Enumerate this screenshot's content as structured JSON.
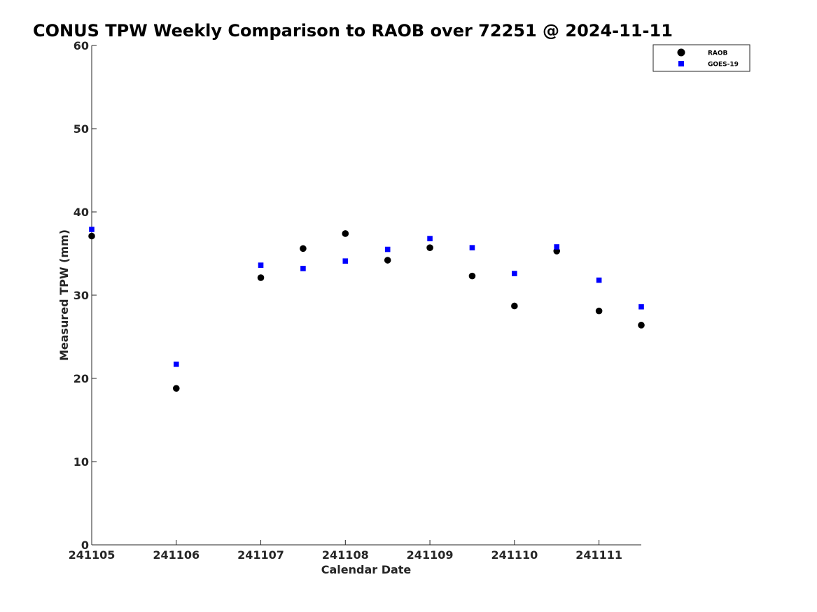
{
  "chart_data": {
    "type": "scatter",
    "title": "CONUS TPW Weekly Comparison to RAOB over 72251 @ 2024-11-11",
    "xlabel": "Calendar Date",
    "ylabel": "Measured TPW (mm)",
    "x_tick_labels": [
      "241105",
      "241106",
      "241107",
      "241108",
      "241109",
      "241110",
      "241111"
    ],
    "y_ticks": [
      0,
      10,
      20,
      30,
      40,
      50,
      60
    ],
    "xlim": [
      "2024-11-05 00:00",
      "2024-11-11 12:00"
    ],
    "ylim": [
      0,
      60
    ],
    "grid": false,
    "legend_position": "top-right",
    "series": [
      {
        "name": "RAOB",
        "marker": "circle",
        "color": "#000000",
        "points": [
          {
            "x": "2024-11-05 00:00",
            "y": 37.1
          },
          {
            "x": "2024-11-06 00:00",
            "y": 18.8
          },
          {
            "x": "2024-11-07 00:00",
            "y": 32.1
          },
          {
            "x": "2024-11-07 12:00",
            "y": 35.6
          },
          {
            "x": "2024-11-08 00:00",
            "y": 37.4
          },
          {
            "x": "2024-11-08 12:00",
            "y": 34.2
          },
          {
            "x": "2024-11-09 00:00",
            "y": 35.7
          },
          {
            "x": "2024-11-09 12:00",
            "y": 32.3
          },
          {
            "x": "2024-11-10 00:00",
            "y": 28.7
          },
          {
            "x": "2024-11-10 12:00",
            "y": 35.3
          },
          {
            "x": "2024-11-11 00:00",
            "y": 28.1
          },
          {
            "x": "2024-11-11 12:00",
            "y": 26.4
          }
        ]
      },
      {
        "name": "GOES-19",
        "marker": "square",
        "color": "#0000ff",
        "points": [
          {
            "x": "2024-11-05 00:00",
            "y": 37.9
          },
          {
            "x": "2024-11-06 00:00",
            "y": 21.7
          },
          {
            "x": "2024-11-07 00:00",
            "y": 33.6
          },
          {
            "x": "2024-11-07 12:00",
            "y": 33.2
          },
          {
            "x": "2024-11-08 00:00",
            "y": 34.1
          },
          {
            "x": "2024-11-08 12:00",
            "y": 35.5
          },
          {
            "x": "2024-11-09 00:00",
            "y": 36.8
          },
          {
            "x": "2024-11-09 12:00",
            "y": 35.7
          },
          {
            "x": "2024-11-10 00:00",
            "y": 32.6
          },
          {
            "x": "2024-11-10 12:00",
            "y": 35.8
          },
          {
            "x": "2024-11-11 00:00",
            "y": 31.8
          },
          {
            "x": "2024-11-11 12:00",
            "y": 28.6
          }
        ]
      }
    ]
  }
}
